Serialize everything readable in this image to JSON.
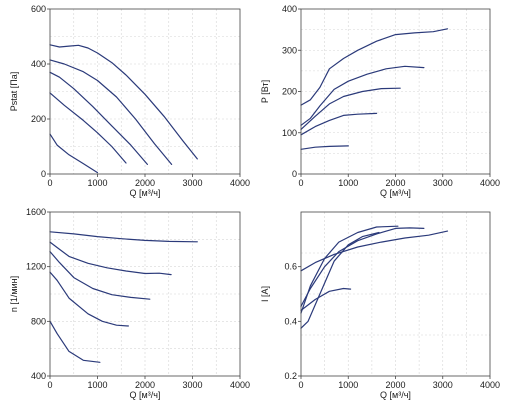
{
  "colors": {
    "curve": "#2b3a7a",
    "grid": "#d6d6d6",
    "frame": "#444444"
  },
  "chart_data": [
    {
      "type": "line",
      "title": "",
      "xlabel": "Q [м³/ч]",
      "ylabel": "Pstat [Па]",
      "xlim": [
        0,
        4000
      ],
      "ylim": [
        0,
        600
      ],
      "xticks": [
        "0",
        "1000",
        "2000",
        "3000",
        "4000"
      ],
      "yticks": [
        "0",
        "200",
        "400",
        "600"
      ],
      "grid": true,
      "series": [
        {
          "points": [
            [
              0,
              470
            ],
            [
              200,
              462
            ],
            [
              400,
              465
            ],
            [
              600,
              468
            ],
            [
              800,
              458
            ],
            [
              1000,
              440
            ],
            [
              1300,
              405
            ],
            [
              1600,
              360
            ],
            [
              2000,
              290
            ],
            [
              2400,
              210
            ],
            [
              2800,
              120
            ],
            [
              3100,
              55
            ]
          ]
        },
        {
          "points": [
            [
              0,
              415
            ],
            [
              300,
              400
            ],
            [
              700,
              372
            ],
            [
              1000,
              340
            ],
            [
              1400,
              280
            ],
            [
              1800,
              200
            ],
            [
              2200,
              110
            ],
            [
              2560,
              35
            ]
          ]
        },
        {
          "points": [
            [
              0,
              370
            ],
            [
              200,
              352
            ],
            [
              500,
              310
            ],
            [
              900,
              245
            ],
            [
              1300,
              175
            ],
            [
              1700,
              105
            ],
            [
              2050,
              35
            ]
          ]
        },
        {
          "points": [
            [
              0,
              295
            ],
            [
              300,
              250
            ],
            [
              700,
              195
            ],
            [
              1000,
              150
            ],
            [
              1300,
              100
            ],
            [
              1600,
              40
            ]
          ]
        },
        {
          "points": [
            [
              0,
              145
            ],
            [
              150,
              105
            ],
            [
              400,
              70
            ],
            [
              700,
              38
            ],
            [
              1000,
              5
            ]
          ]
        }
      ]
    },
    {
      "type": "line",
      "title": "",
      "xlabel": "Q [м³/ч]",
      "ylabel": "P [Вт]",
      "xlim": [
        0,
        4000
      ],
      "ylim": [
        0,
        400
      ],
      "xticks": [
        "0",
        "1000",
        "2000",
        "3000",
        "4000"
      ],
      "yticks": [
        "0",
        "100",
        "200",
        "300",
        "400"
      ],
      "grid": true,
      "series": [
        {
          "points": [
            [
              0,
              167
            ],
            [
              200,
              180
            ],
            [
              400,
              210
            ],
            [
              600,
              255
            ],
            [
              900,
              280
            ],
            [
              1200,
              300
            ],
            [
              1600,
              322
            ],
            [
              2000,
              338
            ],
            [
              2400,
              342
            ],
            [
              2800,
              345
            ],
            [
              3100,
              352
            ]
          ]
        },
        {
          "points": [
            [
              0,
              118
            ],
            [
              200,
              135
            ],
            [
              400,
              165
            ],
            [
              700,
              205
            ],
            [
              1000,
              225
            ],
            [
              1400,
              242
            ],
            [
              1800,
              255
            ],
            [
              2200,
              261
            ],
            [
              2600,
              258
            ]
          ]
        },
        {
          "points": [
            [
              0,
              108
            ],
            [
              300,
              140
            ],
            [
              600,
              170
            ],
            [
              900,
              188
            ],
            [
              1300,
              200
            ],
            [
              1700,
              207
            ],
            [
              2100,
              208
            ]
          ]
        },
        {
          "points": [
            [
              0,
              95
            ],
            [
              300,
              115
            ],
            [
              600,
              130
            ],
            [
              900,
              142
            ],
            [
              1200,
              145
            ],
            [
              1600,
              147
            ]
          ]
        },
        {
          "points": [
            [
              0,
              60
            ],
            [
              300,
              65
            ],
            [
              600,
              67
            ],
            [
              1000,
              68
            ]
          ]
        }
      ]
    },
    {
      "type": "line",
      "title": "",
      "xlabel": "Q [м³/ч]",
      "ylabel": "n [1/мин]",
      "xlim": [
        0,
        4000
      ],
      "ylim": [
        400,
        1600
      ],
      "xticks": [
        "0",
        "1000",
        "2000",
        "3000",
        "4000"
      ],
      "yticks": [
        "400",
        "800",
        "1200",
        "1600"
      ],
      "grid": true,
      "series": [
        {
          "points": [
            [
              0,
              1455
            ],
            [
              500,
              1440
            ],
            [
              1000,
              1420
            ],
            [
              1500,
              1405
            ],
            [
              2000,
              1392
            ],
            [
              2500,
              1385
            ],
            [
              3100,
              1382
            ]
          ]
        },
        {
          "points": [
            [
              0,
              1380
            ],
            [
              150,
              1340
            ],
            [
              400,
              1275
            ],
            [
              800,
              1225
            ],
            [
              1200,
              1192
            ],
            [
              1600,
              1168
            ],
            [
              2000,
              1150
            ],
            [
              2300,
              1152
            ],
            [
              2550,
              1142
            ]
          ]
        },
        {
          "points": [
            [
              0,
              1310
            ],
            [
              200,
              1230
            ],
            [
              500,
              1120
            ],
            [
              900,
              1040
            ],
            [
              1300,
              995
            ],
            [
              1700,
              975
            ],
            [
              2100,
              962
            ]
          ]
        },
        {
          "points": [
            [
              0,
              1160
            ],
            [
              150,
              1100
            ],
            [
              400,
              970
            ],
            [
              800,
              855
            ],
            [
              1100,
              800
            ],
            [
              1400,
              772
            ],
            [
              1650,
              766
            ]
          ]
        },
        {
          "points": [
            [
              0,
              800
            ],
            [
              150,
              710
            ],
            [
              400,
              580
            ],
            [
              700,
              515
            ],
            [
              1050,
              500
            ]
          ]
        }
      ]
    },
    {
      "type": "line",
      "title": "",
      "xlabel": "Q [м³/ч]",
      "ylabel": "I [A]",
      "xlim": [
        0,
        4000
      ],
      "ylim": [
        0.2,
        0.8
      ],
      "xticks": [
        "0",
        "1000",
        "2000",
        "3000",
        "4000"
      ],
      "yticks": [
        "0.2",
        "0.4",
        "0.6"
      ],
      "grid": true,
      "series": [
        {
          "points": [
            [
              0,
              0.585
            ],
            [
              300,
              0.615
            ],
            [
              700,
              0.645
            ],
            [
              1200,
              0.672
            ],
            [
              1700,
              0.69
            ],
            [
              2200,
              0.705
            ],
            [
              2700,
              0.715
            ],
            [
              3100,
              0.73
            ]
          ]
        },
        {
          "points": [
            [
              0,
              0.455
            ],
            [
              200,
              0.52
            ],
            [
              500,
              0.6
            ],
            [
              800,
              0.655
            ],
            [
              1200,
              0.695
            ],
            [
              1600,
              0.72
            ],
            [
              2000,
              0.74
            ],
            [
              2300,
              0.742
            ],
            [
              2600,
              0.74
            ]
          ]
        },
        {
          "points": [
            [
              0,
              0.43
            ],
            [
              200,
              0.53
            ],
            [
              500,
              0.63
            ],
            [
              800,
              0.69
            ],
            [
              1200,
              0.725
            ],
            [
              1600,
              0.745
            ],
            [
              2050,
              0.748
            ]
          ]
        },
        {
          "points": [
            [
              0,
              0.375
            ],
            [
              150,
              0.4
            ],
            [
              400,
              0.5
            ],
            [
              700,
              0.62
            ],
            [
              1000,
              0.68
            ],
            [
              1300,
              0.71
            ],
            [
              1650,
              0.725
            ]
          ]
        },
        {
          "points": [
            [
              0,
              0.44
            ],
            [
              300,
              0.48
            ],
            [
              600,
              0.51
            ],
            [
              900,
              0.52
            ],
            [
              1050,
              0.518
            ]
          ]
        }
      ]
    }
  ]
}
